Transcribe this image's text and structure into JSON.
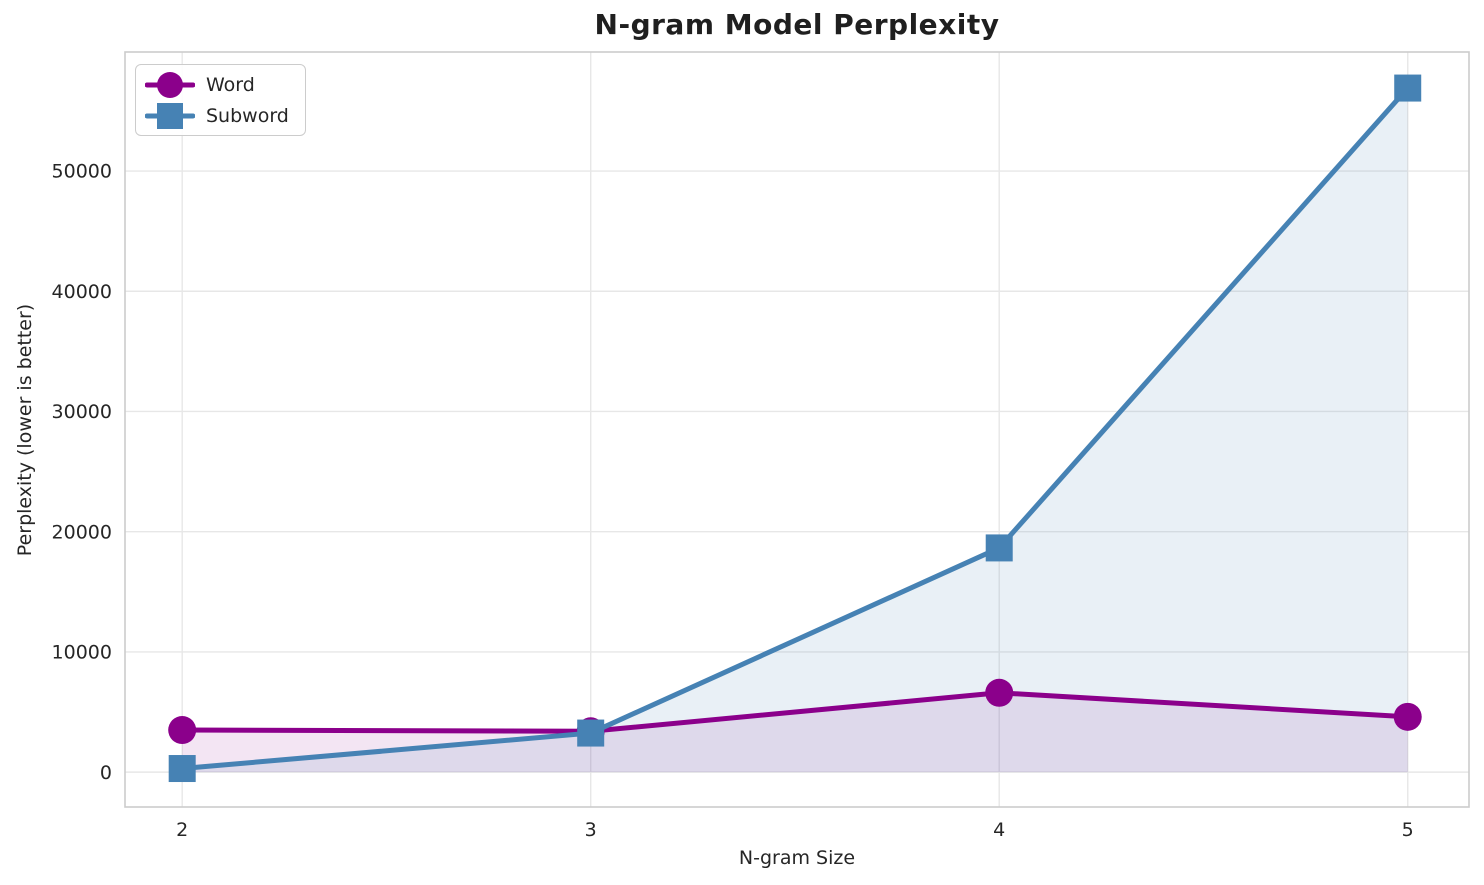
{
  "chart_data": {
    "type": "line",
    "title": "N-gram Model Perplexity",
    "xlabel": "N-gram Size",
    "ylabel": "Perplexity (lower is better)",
    "x": [
      2,
      3,
      4,
      5
    ],
    "xtick_labels": [
      "2",
      "3",
      "4",
      "5"
    ],
    "ytick_values": [
      0,
      10000,
      20000,
      30000,
      40000,
      50000
    ],
    "ytick_labels": [
      "0",
      "10000",
      "20000",
      "30000",
      "40000",
      "50000"
    ],
    "xlim": [
      1.86,
      5.15
    ],
    "ylim": [
      -2900,
      59900
    ],
    "grid": true,
    "legend_position": "upper left",
    "fill_between_line_and_zero": true,
    "series": [
      {
        "name": "Word",
        "marker": "circle",
        "color": "#8B008B",
        "fill_color": "rgba(139,0,139,0.10)",
        "values": [
          3500,
          3400,
          6600,
          4600
        ]
      },
      {
        "name": "Subword",
        "marker": "square",
        "color": "#4682B4",
        "fill_color": "rgba(70,130,180,0.12)",
        "values": [
          300,
          3250,
          18650,
          56900
        ]
      }
    ],
    "style": {
      "text_color": "#262626",
      "grid_color": "#e7e7e7",
      "spine_color": "#cccccc",
      "background": "#ffffff"
    }
  }
}
